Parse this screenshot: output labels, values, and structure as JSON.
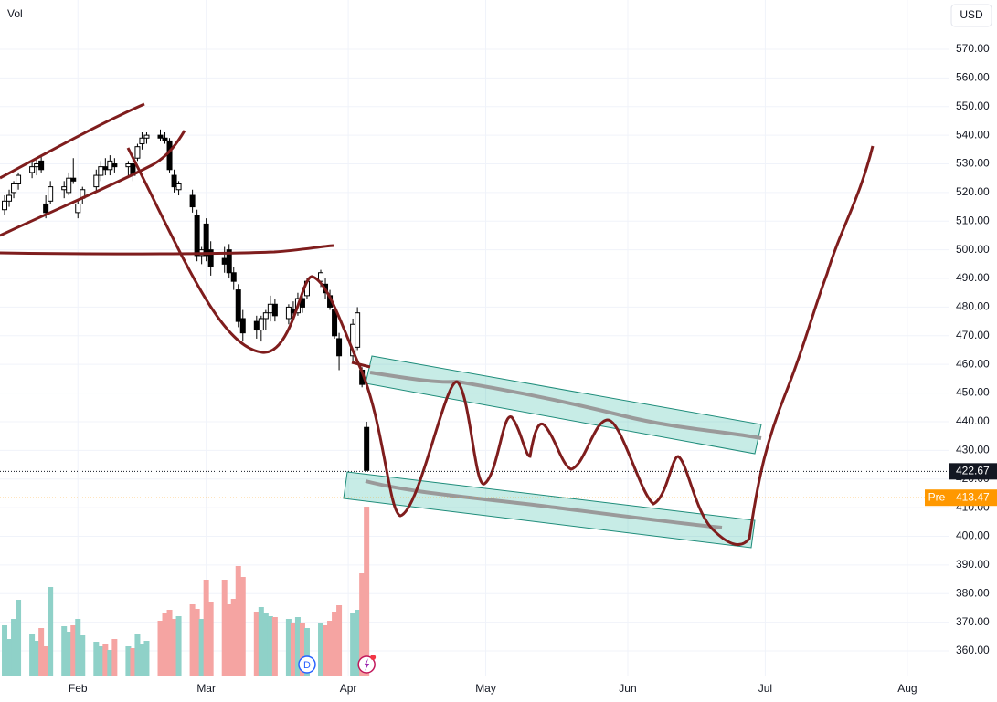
{
  "chart_data": {
    "type": "candlestick",
    "volume_title": "Vol",
    "currency": "USD",
    "x": [
      16,
      17,
      18,
      19,
      22,
      23,
      24,
      25,
      26,
      29,
      30,
      31,
      32,
      33,
      36,
      37,
      38,
      39,
      40,
      43,
      44,
      45,
      46,
      47,
      50,
      51,
      52,
      53,
      54,
      57,
      58,
      59,
      60,
      61,
      64,
      65,
      66,
      67,
      68,
      71,
      72,
      73,
      74,
      75,
      78,
      79,
      80,
      81,
      82,
      85,
      86,
      87,
      88,
      89,
      92,
      93,
      94,
      95
    ],
    "open": [
      514,
      517,
      520,
      523,
      527,
      529,
      531,
      516,
      517,
      521,
      520,
      525,
      513,
      518,
      522,
      526,
      529,
      528,
      530,
      529,
      530,
      532,
      537,
      539,
      540,
      539,
      538,
      526,
      521,
      519,
      512,
      498,
      509,
      500,
      497,
      500,
      492,
      486,
      476,
      475,
      472,
      476,
      478,
      481,
      476,
      479,
      478,
      483,
      484,
      489,
      488,
      484,
      479,
      469,
      463,
      466,
      458,
      438
    ],
    "high": [
      519,
      521,
      524,
      527,
      531,
      532,
      533,
      519,
      524,
      524,
      527,
      532,
      517,
      522,
      528,
      531,
      532,
      533,
      532,
      531,
      532,
      537,
      541,
      541,
      542,
      541,
      539,
      528,
      524,
      521,
      514,
      501,
      511,
      503,
      501,
      502,
      494,
      488,
      479,
      477,
      477,
      479,
      484,
      483,
      481,
      482,
      485,
      487,
      490,
      493,
      490,
      486,
      480,
      471,
      476,
      480,
      459,
      440
    ],
    "low": [
      512,
      515,
      518,
      521,
      525,
      526,
      527,
      511,
      516,
      518,
      519,
      523,
      511,
      516,
      520,
      524,
      526,
      526,
      527,
      526,
      524,
      531,
      535,
      537,
      538,
      537,
      527,
      520,
      519,
      513,
      496,
      495,
      496,
      491,
      492,
      490,
      486,
      473,
      468,
      469,
      468,
      472,
      475,
      475,
      474,
      476,
      477,
      478,
      483,
      487,
      483,
      479,
      469,
      458,
      461,
      465,
      452,
      423
    ],
    "close": [
      517,
      519,
      523,
      526,
      529,
      530,
      528,
      513,
      522,
      522,
      525,
      524,
      516,
      521,
      526,
      529,
      528,
      531,
      529,
      530,
      526,
      536,
      539,
      540,
      539,
      538,
      528,
      522,
      523,
      515,
      498,
      500,
      498,
      494,
      495,
      492,
      489,
      475,
      471,
      472,
      476,
      478,
      481,
      477,
      480,
      478,
      483,
      480,
      489,
      492,
      485,
      480,
      470,
      463,
      474,
      478,
      453,
      423
    ],
    "volume": [
      55,
      40,
      62,
      83,
      45,
      38,
      52,
      32,
      97,
      54,
      48,
      55,
      62,
      44,
      37,
      32,
      35,
      28,
      40,
      32,
      30,
      45,
      35,
      38,
      60,
      68,
      72,
      62,
      65,
      78,
      73,
      62,
      105,
      80,
      105,
      78,
      84,
      120,
      108,
      70,
      75,
      68,
      65,
      64,
      62,
      58,
      64,
      57,
      52,
      58,
      55,
      60,
      70,
      77,
      68,
      72,
      112,
      185
    ],
    "up_color": "#ffffff",
    "down_color": "#000000",
    "volume_up_color": "#8fd1c8",
    "volume_down_color": "#f5a4a2",
    "xlim": [
      15,
      222
    ],
    "xticks": [
      {
        "value": 32,
        "label": "Feb"
      },
      {
        "value": 60,
        "label": "Mar"
      },
      {
        "value": 91,
        "label": "Apr"
      },
      {
        "value": 121,
        "label": "May"
      },
      {
        "value": 152,
        "label": "Jun"
      },
      {
        "value": 182,
        "label": "Jul"
      },
      {
        "value": 213,
        "label": "Aug"
      }
    ],
    "ylim": [
      351.4,
      587.2
    ],
    "yticks": [
      {
        "value": 360,
        "label": "360.00"
      },
      {
        "value": 370,
        "label": "370.00"
      },
      {
        "value": 380,
        "label": "380.00"
      },
      {
        "value": 390,
        "label": "390.00"
      },
      {
        "value": 400,
        "label": "400.00"
      },
      {
        "value": 410,
        "label": "410.00"
      },
      {
        "value": 420,
        "label": "420.00"
      },
      {
        "value": 430,
        "label": "430.00"
      },
      {
        "value": 440,
        "label": "440.00"
      },
      {
        "value": 450,
        "label": "450.00"
      },
      {
        "value": 460,
        "label": "460.00"
      },
      {
        "value": 470,
        "label": "470.00"
      },
      {
        "value": 480,
        "label": "480.00"
      },
      {
        "value": 490,
        "label": "490.00"
      },
      {
        "value": 500,
        "label": "500.00"
      },
      {
        "value": 510,
        "label": "510.00"
      },
      {
        "value": 520,
        "label": "520.00"
      },
      {
        "value": 530,
        "label": "530.00"
      },
      {
        "value": 540,
        "label": "540.00"
      },
      {
        "value": 550,
        "label": "550.00"
      },
      {
        "value": 560,
        "label": "560.00"
      },
      {
        "value": 570,
        "label": "570.00"
      }
    ],
    "vlim": [
      0,
      200
    ],
    "grid": true,
    "last_price": 422.67,
    "pre_market": {
      "label": "Pre",
      "value": 413.47
    },
    "events": [
      {
        "label": "D",
        "x": 82
      }
    ]
  }
}
